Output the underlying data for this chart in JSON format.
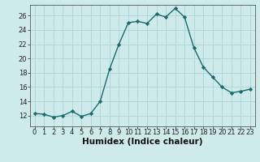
{
  "x": [
    0,
    1,
    2,
    3,
    4,
    5,
    6,
    7,
    8,
    9,
    10,
    11,
    12,
    13,
    14,
    15,
    16,
    17,
    18,
    19,
    20,
    21,
    22,
    23
  ],
  "y": [
    12.3,
    12.2,
    11.8,
    12.0,
    12.6,
    11.9,
    12.3,
    14.0,
    18.5,
    22.0,
    25.0,
    25.2,
    24.9,
    26.2,
    25.8,
    27.0,
    25.8,
    21.5,
    18.8,
    17.4,
    16.0,
    15.2,
    15.4,
    15.7
  ],
  "line_color": "#1a6b6b",
  "marker": "D",
  "marker_size": 2.2,
  "bg_color": "#ceeaea",
  "grid_color": "#aad4d4",
  "xlabel": "Humidex (Indice chaleur)",
  "ylim": [
    10.5,
    27.5
  ],
  "xlim": [
    -0.5,
    23.5
  ],
  "yticks": [
    12,
    14,
    16,
    18,
    20,
    22,
    24,
    26
  ],
  "xticks": [
    0,
    1,
    2,
    3,
    4,
    5,
    6,
    7,
    8,
    9,
    10,
    11,
    12,
    13,
    14,
    15,
    16,
    17,
    18,
    19,
    20,
    21,
    22,
    23
  ],
  "xlabel_fontsize": 7.5,
  "tick_fontsize": 6.0,
  "line_width": 1.0
}
